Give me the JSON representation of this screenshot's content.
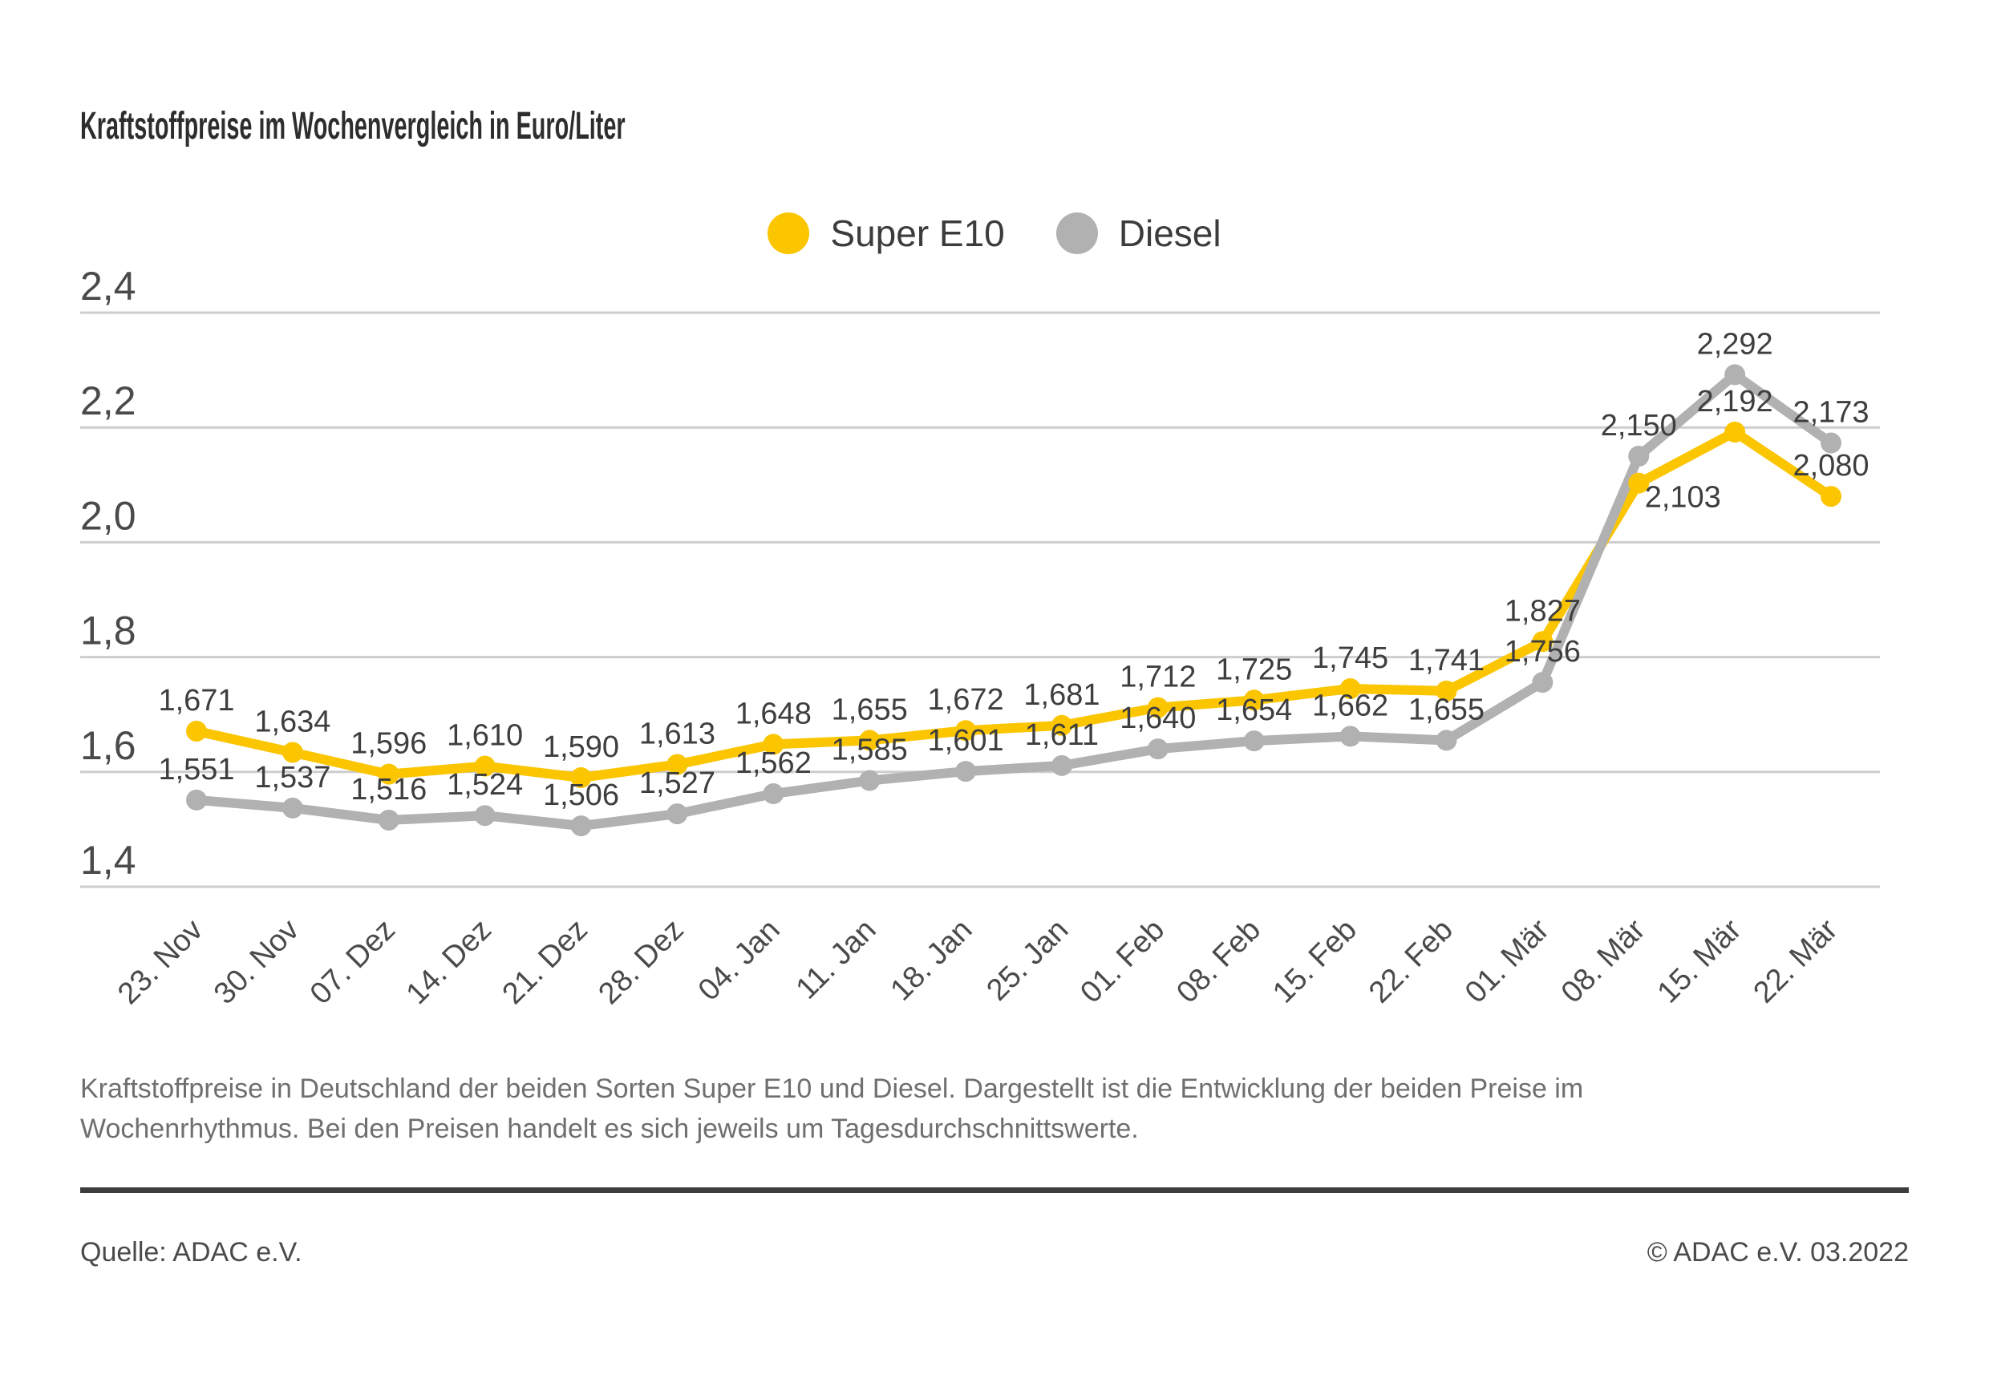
{
  "chart_data": {
    "type": "line",
    "title": "Kraftstoffpreise im Wochenvergleich in Euro/Liter",
    "categories": [
      "23. Nov",
      "30. Nov",
      "07. Dez",
      "14. Dez",
      "21. Dez",
      "28. Dez",
      "04. Jan",
      "11. Jan",
      "18. Jan",
      "25. Jan",
      "01. Feb",
      "08. Feb",
      "15. Feb",
      "22. Feb",
      "01. Mär",
      "08. Mär",
      "15. Mär",
      "22. Mär"
    ],
    "series": [
      {
        "name": "Super E10",
        "color": "#FBC500",
        "values": [
          1.671,
          1.634,
          1.596,
          1.61,
          1.59,
          1.613,
          1.648,
          1.655,
          1.672,
          1.681,
          1.712,
          1.725,
          1.745,
          1.741,
          1.827,
          2.103,
          2.192,
          2.08
        ]
      },
      {
        "name": "Diesel",
        "color": "#B1B1B1",
        "values": [
          1.551,
          1.537,
          1.516,
          1.524,
          1.506,
          1.527,
          1.562,
          1.585,
          1.601,
          1.611,
          1.64,
          1.654,
          1.662,
          1.655,
          1.756,
          2.15,
          2.292,
          2.173
        ]
      }
    ],
    "yticks": [
      2.4,
      2.2,
      2.0,
      1.8,
      1.6,
      1.4
    ],
    "ylim": [
      1.4,
      2.4
    ],
    "ylabel": "Euro/Liter",
    "grid": "horizontal",
    "grid_color": "#CDCDCD",
    "tick_label_color": "#4A4A4A",
    "value_label_color": "#3E3E3E",
    "legend_position": "top-center",
    "decimal_separator": ","
  },
  "footnote": {
    "lines": [
      "Kraftstoffpreise in Deutschland der beiden Sorten Super E10 und Diesel. Dargestellt ist die Entwicklung der beiden Preise im",
      "Wochenrhythmus. Bei den Preisen handelt es sich jeweils um Tagesdurchschnittswerte."
    ]
  },
  "footer": {
    "source": "Quelle: ADAC e.V.",
    "copyright": "© ADAC e.V. 03.2022"
  }
}
